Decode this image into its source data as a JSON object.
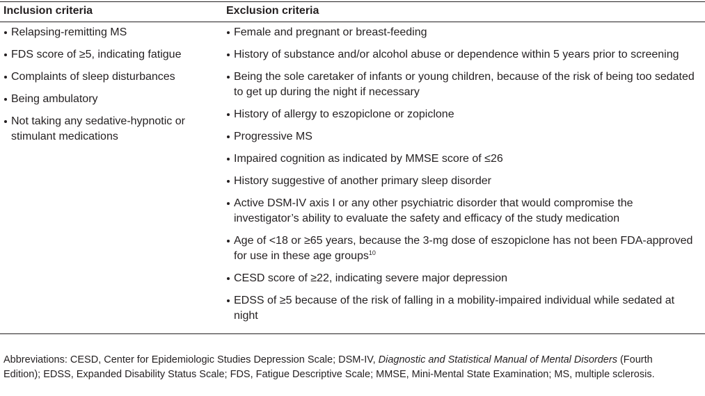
{
  "table": {
    "columns": [
      "Inclusion criteria",
      "Exclusion criteria"
    ],
    "inclusion": [
      "Relapsing-remitting MS",
      "FDS score of ≥5, indicating fatigue",
      "Complaints of sleep disturbances",
      "Being ambulatory",
      "Not taking any sedative-hypnotic or stimulant medications"
    ],
    "exclusion": [
      "Female and pregnant or breast-feeding",
      "History of substance and/or alcohol abuse or dependence within 5 years prior to screening",
      "Being the sole caretaker of infants or young children, because of the risk of being too sedated to get up during the night if necessary",
      "History of allergy to eszopiclone or zopiclone",
      "Progressive MS",
      "Impaired cognition as indicated by MMSE score of ≤26",
      "History suggestive of another primary sleep disorder",
      "Active DSM-IV axis I or any other psychiatric disorder that would compromise the investigator’s ability to evaluate the safety and efficacy of the study medication",
      {
        "text": "Age of <18 or ≥65 years, because the 3-mg dose of eszopiclone has not been FDA-approved for use in these age groups",
        "sup": "10"
      },
      "CESD score of ≥22, indicating severe major depression",
      "EDSS of ≥5 because of the risk of falling in a mobility-impaired individual while sedated at night"
    ]
  },
  "footnote": {
    "parts": [
      {
        "text": "Abbreviations: CESD, Center for Epidemiologic Studies Depression Scale; DSM-IV, "
      },
      {
        "text": "Diagnostic and Statistical Manual of Mental Disorders",
        "italic": true
      },
      {
        "text": " (Fourth Edition); EDSS, Expanded Disability Status Scale; FDS, Fatigue Descriptive Scale; MMSE, Mini-Mental State Examination; MS, multiple sclerosis."
      }
    ]
  }
}
